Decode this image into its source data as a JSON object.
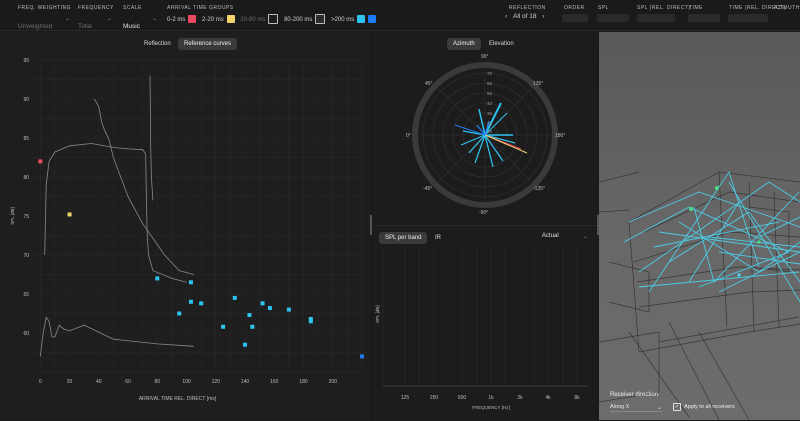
{
  "toolbar": {
    "freq_weighting": {
      "label": "FREQ. WEIGHTING",
      "value": "Unweighted"
    },
    "frequency": {
      "label": "FREQUENCY",
      "value": "Total"
    },
    "scale": {
      "label": "SCALE",
      "value": "Music"
    },
    "arrival_groups": {
      "label": "ARRIVAL TIME GROUPS",
      "items": [
        {
          "label": "0-2 ms",
          "color": "#e84a5f"
        },
        {
          "label": "2-20 ms",
          "color": "#f2d36b"
        },
        {
          "label": "20-80 ms",
          "color": "#1e1e1e"
        },
        {
          "label": "80-200 ms",
          "color": "#2b2b2b"
        },
        {
          "label": ">200 ms",
          "color": "#2ec4f1"
        },
        {
          "label": "",
          "color": "#1f7cf5"
        }
      ]
    },
    "reflection": {
      "label": "REFLECTION",
      "value": "All of 18"
    },
    "order": {
      "label": "ORDER"
    },
    "spl": {
      "label": "SPL"
    },
    "spl_rel": {
      "label": "SPL (REL. DIRECT)"
    },
    "time": {
      "label": "TIME"
    },
    "time_rel": {
      "label": "TIME (REL. DIRECT)"
    },
    "azimuth": {
      "label": "AZIMUTH"
    }
  },
  "left_panel": {
    "tabs": [
      "Reflection",
      "Reference curves"
    ],
    "chart_data": {
      "type": "scatter",
      "xlabel": "ARRIVAL TIME REL. DIRECT [ms]",
      "ylabel": "SPL [dB]",
      "xlim": [
        -5,
        220
      ],
      "ylim": [
        55,
        95
      ],
      "x_ticks": [
        0,
        20,
        40,
        60,
        80,
        100,
        120,
        140,
        160,
        180,
        200
      ],
      "y_ticks": [
        60,
        65,
        70,
        75,
        80,
        85,
        90,
        95
      ],
      "series": [
        {
          "color": "#e84a5f",
          "points": [
            [
              0,
              82
            ]
          ]
        },
        {
          "color": "#f2d36b",
          "points": [
            [
              20,
              75.2
            ]
          ]
        },
        {
          "color": "#2ec4f1",
          "points": [
            [
              80,
              67
            ],
            [
              95,
              62.5
            ],
            [
              103,
              66.5
            ],
            [
              103,
              64
            ],
            [
              110,
              63.8
            ],
            [
              125,
              60.8
            ],
            [
              133,
              64.5
            ],
            [
              140,
              58.5
            ],
            [
              143,
              62.3
            ],
            [
              145,
              60.8
            ],
            [
              152,
              63.8
            ],
            [
              157,
              63.2
            ],
            [
              170,
              63
            ],
            [
              185,
              61.8
            ],
            [
              185,
              61.5
            ]
          ]
        },
        {
          "color": "#1f7cf5",
          "points": [
            [
              220,
              57
            ]
          ]
        }
      ]
    }
  },
  "polar_panel": {
    "tabs": [
      "Azimuth",
      "Elevation"
    ],
    "angle_labels": [
      "90°",
      "135°",
      "180°",
      "-135°",
      "-90°",
      "-45°",
      "0°",
      "45°"
    ],
    "radial_labels": [
      "70",
      "60",
      "50",
      "40",
      "30",
      "20",
      "10"
    ]
  },
  "spl_panel": {
    "tabs": [
      "SPL per band",
      "IR"
    ],
    "dropdown": "Actual",
    "xlabel": "FREQUENCY [Hz]",
    "ylabel": "SPL [dB]",
    "freq_ticks": [
      "125",
      "250",
      "500",
      "1k",
      "2k",
      "4k",
      "8k"
    ]
  },
  "viewport": {
    "receiver_direction_label": "Receiver direction",
    "direction_value": "Along X",
    "apply_all_label": "Apply to all receivers"
  }
}
